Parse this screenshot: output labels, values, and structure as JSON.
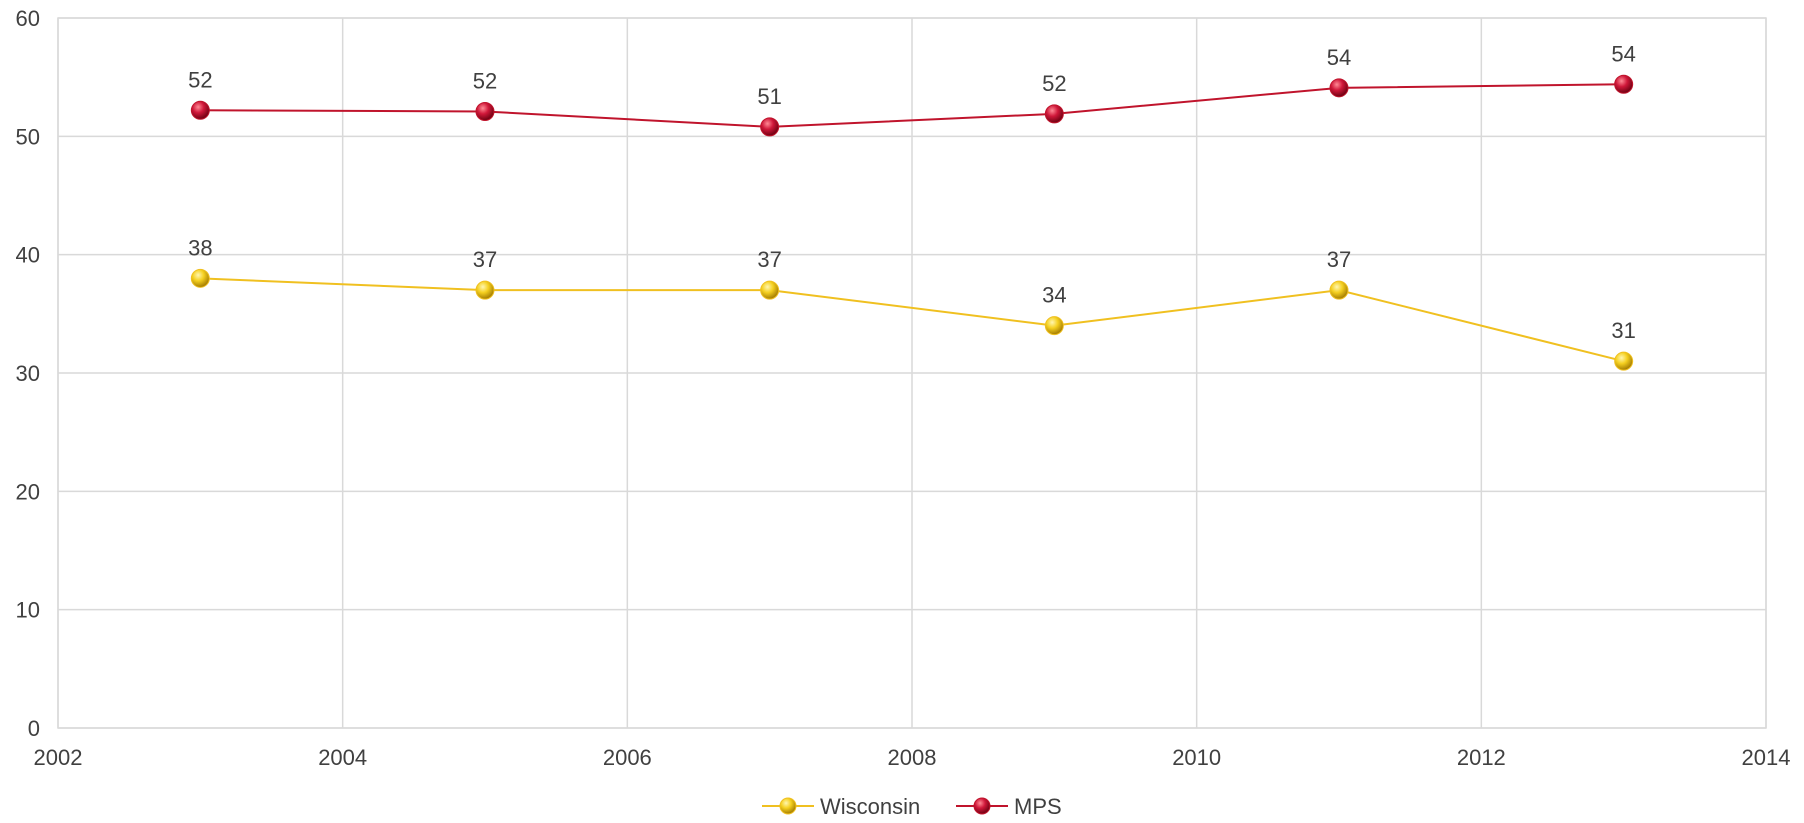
{
  "chart_data": {
    "type": "scatter",
    "xlim": [
      2002,
      2014
    ],
    "ylim": [
      0,
      60
    ],
    "x_ticks": [
      "2002",
      "2004",
      "2006",
      "2008",
      "2010",
      "2012",
      "2014"
    ],
    "y_ticks": [
      "0",
      "10",
      "20",
      "30",
      "40",
      "50",
      "60"
    ],
    "grid": true,
    "legend_position": "bottom",
    "series": [
      {
        "name": "Wisconsin",
        "color": "#f0c020",
        "x": [
          2003,
          2005,
          2007,
          2009,
          2011,
          2013
        ],
        "y": [
          38,
          37,
          37,
          34,
          37,
          31
        ],
        "labels": [
          "38",
          "37",
          "37",
          "34",
          "37",
          "31"
        ]
      },
      {
        "name": "MPS",
        "color": "#c0142c",
        "x": [
          2003,
          2005,
          2007,
          2009,
          2011,
          2013
        ],
        "y": [
          52.2,
          52.1,
          50.8,
          51.9,
          54.1,
          54.4
        ],
        "labels": [
          "52",
          "52",
          "51",
          "52",
          "54",
          "54"
        ]
      }
    ]
  }
}
